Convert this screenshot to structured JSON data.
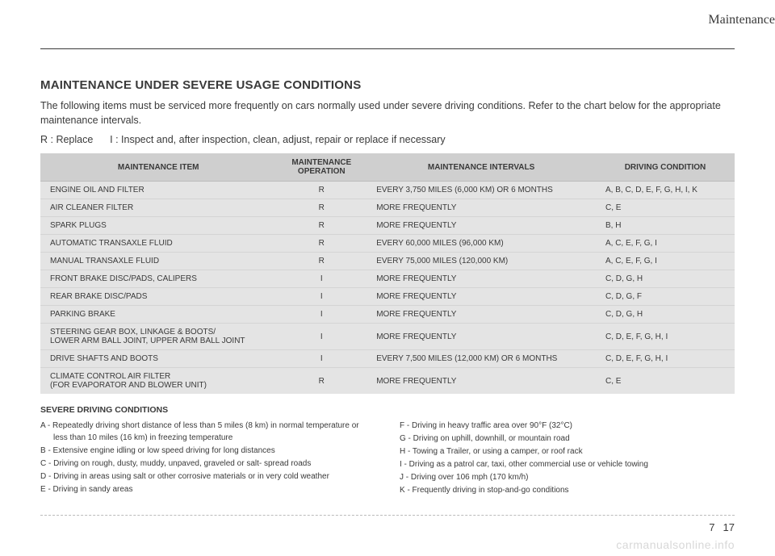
{
  "header": {
    "section": "Maintenance"
  },
  "title": "MAINTENANCE UNDER SEVERE USAGE CONDITIONS",
  "intro": "The following items must be serviced more frequently on cars normally used under severe driving conditions. Refer to the chart below for the appropriate maintenance intervals.",
  "legend": "R : Replace      I : Inspect and, after inspection, clean, adjust, repair or replace if necessary",
  "table": {
    "headers": [
      "MAINTENANCE ITEM",
      "MAINTENANCE OPERATION",
      "MAINTENANCE INTERVALS",
      "DRIVING CONDITION"
    ],
    "rows": [
      [
        "ENGINE OIL AND FILTER",
        "R",
        "EVERY 3,750 MILES (6,000 KM) OR 6 MONTHS",
        "A, B, C, D, E, F, G, H, I, K"
      ],
      [
        "AIR CLEANER FILTER",
        "R",
        "MORE FREQUENTLY",
        "C, E"
      ],
      [
        "SPARK PLUGS",
        "R",
        "MORE FREQUENTLY",
        "B, H"
      ],
      [
        "AUTOMATIC TRANSAXLE FLUID",
        "R",
        "EVERY 60,000 MILES (96,000 KM)",
        "A, C, E, F, G, I"
      ],
      [
        "MANUAL TRANSAXLE FLUID",
        "R",
        "EVERY 75,000 MILES (120,000 KM)",
        "A, C, E, F, G, I"
      ],
      [
        "FRONT BRAKE DISC/PADS, CALIPERS",
        "I",
        "MORE FREQUENTLY",
        "C, D, G, H"
      ],
      [
        "REAR BRAKE DISC/PADS",
        "I",
        "MORE FREQUENTLY",
        "C, D, G, F"
      ],
      [
        "PARKING BRAKE",
        "I",
        "MORE FREQUENTLY",
        "C, D, G, H"
      ],
      [
        "STEERING GEAR BOX, LINKAGE & BOOTS/\nLOWER ARM BALL JOINT, UPPER ARM BALL JOINT",
        "I",
        "MORE FREQUENTLY",
        "C, D, E, F, G, H, I"
      ],
      [
        "DRIVE SHAFTS AND BOOTS",
        "I",
        "EVERY 7,500 MILES (12,000 KM) OR 6 MONTHS",
        "C, D, E, F, G, H, I"
      ],
      [
        "CLIMATE CONTROL AIR FILTER\n(FOR EVAPORATOR AND BLOWER UNIT)",
        "R",
        "MORE FREQUENTLY",
        "C, E"
      ]
    ],
    "header_bg": "#cfcfcf",
    "body_bg": "#e4e4e4"
  },
  "conditions": {
    "title": "SEVERE DRIVING CONDITIONS",
    "left": [
      "A - Repeatedly driving short distance of less than 5 miles (8 km) in normal temperature or less than 10 miles (16 km) in freezing temperature",
      "B - Extensive engine idling or low speed driving for long distances",
      "C - Driving on rough, dusty, muddy, unpaved, graveled or salt- spread roads",
      "D - Driving in areas using salt or other corrosive materials or in very cold weather",
      "E - Driving in sandy areas"
    ],
    "right": [
      "F - Driving in heavy traffic area over 90°F (32°C)",
      "G - Driving on uphill, downhill, or mountain road",
      "H - Towing a Trailer, or using a camper, or roof rack",
      "I  - Driving as a patrol car, taxi, other commercial use or vehicle towing",
      "J - Driving over 106 mph (170 km/h)",
      "K - Frequently driving in stop-and-go conditions"
    ]
  },
  "footer": {
    "chapter": "7",
    "page": "17"
  },
  "watermark": "carmanualsonline.info"
}
